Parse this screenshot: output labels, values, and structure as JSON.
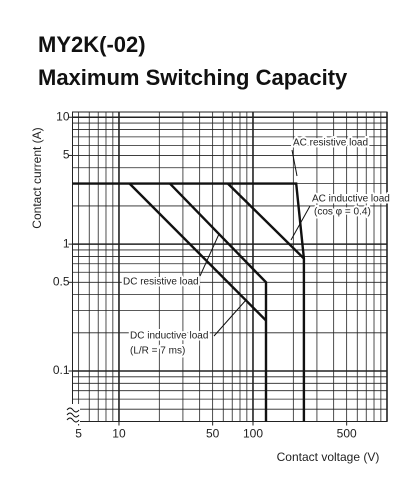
{
  "chart_data": {
    "type": "line",
    "title": "MY2K(-02)",
    "subtitle": "Maximum Switching Capacity",
    "x_label": "Contact voltage (V)",
    "y_label": "Contact current (A)",
    "log_x": true,
    "log_y": true,
    "grid": true,
    "color": "#111111",
    "xlim": [
      4.5,
      1000
    ],
    "xticks": [
      5,
      10,
      50,
      100,
      500
    ],
    "ylim": [
      0.04,
      11
    ],
    "yticks": [
      10,
      5,
      1,
      0.5,
      0.1
    ],
    "series": [
      {
        "name": "AC resistive load",
        "x": [
          4.5,
          210,
          240,
          240
        ],
        "y": [
          3,
          3,
          0.77,
          0.04
        ]
      },
      {
        "name": "AC inductive load",
        "condition": "(cos φ = 0.4)",
        "x": [
          65,
          240
        ],
        "y": [
          3,
          0.77
        ]
      },
      {
        "name": "DC resistive load",
        "x": [
          24,
          125,
          125
        ],
        "y": [
          3,
          0.5,
          0.04
        ]
      },
      {
        "name": "DC inductive load",
        "condition": "(L/R = 7 ms)",
        "x": [
          12,
          125
        ],
        "y": [
          3,
          0.25
        ]
      }
    ]
  }
}
